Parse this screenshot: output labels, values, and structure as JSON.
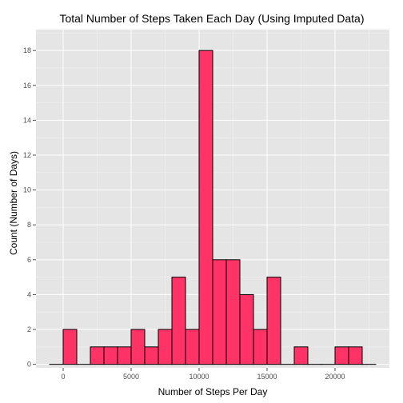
{
  "chart_data": {
    "type": "bar",
    "title": "Total Number of Steps Taken Each Day (Using Imputed Data)",
    "xlabel": "Number of Steps Per Day",
    "ylabel": "Count (Number of Days)",
    "xlim": [
      -2000,
      24000
    ],
    "ylim": [
      -0.2,
      19.2
    ],
    "x_ticks": [
      0,
      5000,
      10000,
      15000,
      20000
    ],
    "x_tick_labels": [
      "0",
      "5000",
      "10000",
      "15000",
      "20000"
    ],
    "y_ticks": [
      0,
      2,
      4,
      6,
      8,
      10,
      12,
      14,
      16,
      18
    ],
    "y_tick_labels": [
      "0",
      "2",
      "4",
      "6",
      "8",
      "10",
      "12",
      "14",
      "16",
      "18"
    ],
    "bin_width": 1000,
    "bins": [
      {
        "x_start": -1000,
        "x_end": 0,
        "count": 0
      },
      {
        "x_start": 0,
        "x_end": 1000,
        "count": 2
      },
      {
        "x_start": 1000,
        "x_end": 2000,
        "count": 0
      },
      {
        "x_start": 2000,
        "x_end": 3000,
        "count": 1
      },
      {
        "x_start": 3000,
        "x_end": 4000,
        "count": 1
      },
      {
        "x_start": 4000,
        "x_end": 5000,
        "count": 1
      },
      {
        "x_start": 5000,
        "x_end": 6000,
        "count": 2
      },
      {
        "x_start": 6000,
        "x_end": 7000,
        "count": 1
      },
      {
        "x_start": 7000,
        "x_end": 8000,
        "count": 2
      },
      {
        "x_start": 8000,
        "x_end": 9000,
        "count": 5
      },
      {
        "x_start": 9000,
        "x_end": 10000,
        "count": 2
      },
      {
        "x_start": 10000,
        "x_end": 11000,
        "count": 18
      },
      {
        "x_start": 11000,
        "x_end": 12000,
        "count": 6
      },
      {
        "x_start": 12000,
        "x_end": 13000,
        "count": 6
      },
      {
        "x_start": 13000,
        "x_end": 14000,
        "count": 4
      },
      {
        "x_start": 14000,
        "x_end": 15000,
        "count": 2
      },
      {
        "x_start": 15000,
        "x_end": 16000,
        "count": 5
      },
      {
        "x_start": 16000,
        "x_end": 17000,
        "count": 0
      },
      {
        "x_start": 17000,
        "x_end": 18000,
        "count": 1
      },
      {
        "x_start": 18000,
        "x_end": 19000,
        "count": 0
      },
      {
        "x_start": 19000,
        "x_end": 20000,
        "count": 0
      },
      {
        "x_start": 20000,
        "x_end": 21000,
        "count": 1
      },
      {
        "x_start": 21000,
        "x_end": 22000,
        "count": 1
      },
      {
        "x_start": 22000,
        "x_end": 23000,
        "count": 0
      }
    ],
    "grid": true,
    "colors": {
      "bar_fill": "#ff3366",
      "bar_outline": "#000000",
      "panel_background": "#e5e5e5",
      "grid_major": "#ffffff"
    }
  }
}
